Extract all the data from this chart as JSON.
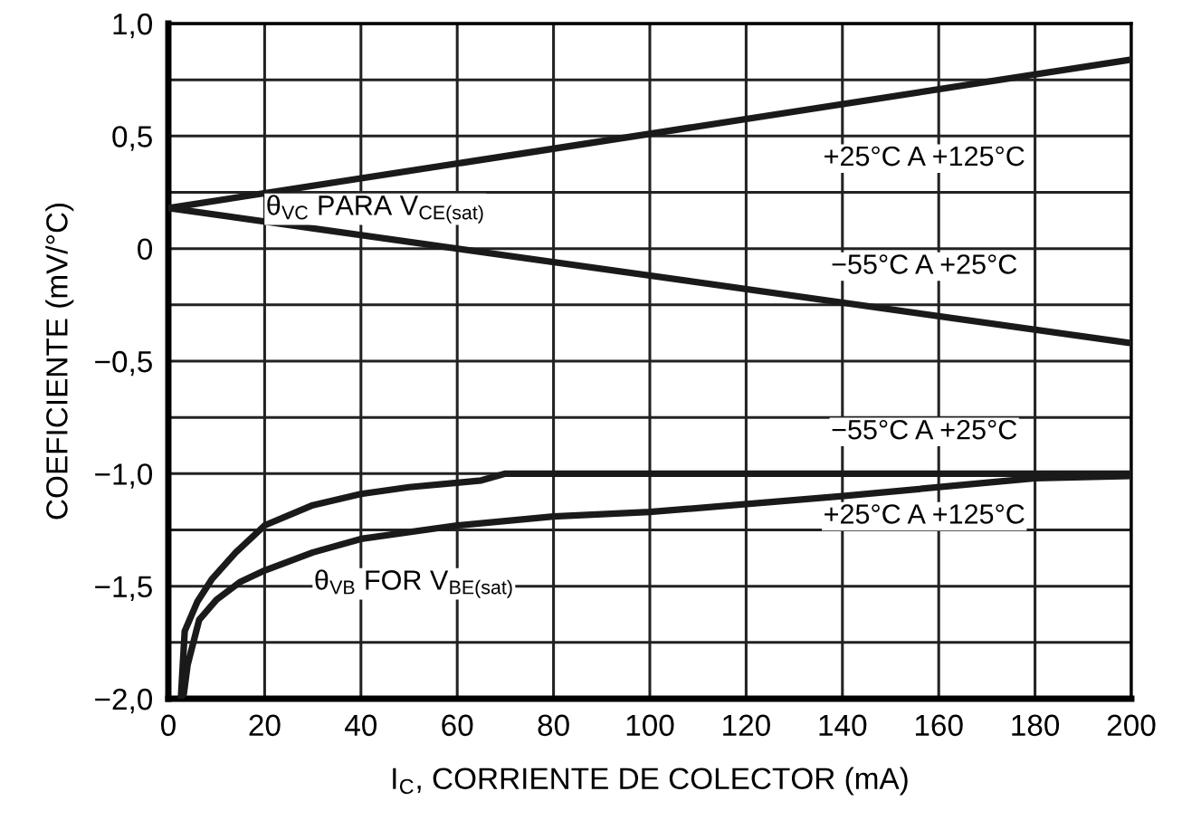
{
  "chart_data": {
    "type": "line",
    "xlabel": "I$_{C}$, CORRIENTE DE COLECTOR (mA)",
    "ylabel": "COEFICIENTE (mV/°C)",
    "xlim": [
      0,
      200
    ],
    "xticks": [
      0,
      20,
      40,
      60,
      80,
      100,
      120,
      140,
      160,
      180,
      200
    ],
    "ylim": [
      -2.0,
      1.0
    ],
    "yticks": [
      {
        "value": -2.0,
        "label": "−2,0"
      },
      {
        "value": -1.75,
        "label": null
      },
      {
        "value": -1.5,
        "label": "−1,5"
      },
      {
        "value": -1.25,
        "label": null
      },
      {
        "value": -1.0,
        "label": "−1,0"
      },
      {
        "value": -0.75,
        "label": null
      },
      {
        "value": -0.5,
        "label": "−0,5"
      },
      {
        "value": -0.25,
        "label": null
      },
      {
        "value": 0,
        "label": "0"
      },
      {
        "value": 0.25,
        "label": null
      },
      {
        "value": 0.5,
        "label": "0,5"
      },
      {
        "value": 0.75,
        "label": null
      },
      {
        "value": 1.0,
        "label": "1,0"
      }
    ],
    "grid": true,
    "marker": "none",
    "line_style": "solid",
    "series": [
      {
        "color": "#1a1a1a",
        "x": [
          0,
          200
        ],
        "values": [
          0.18,
          0.84
        ]
      },
      {
        "color": "#1a1a1a",
        "x": [
          0,
          200
        ],
        "values": [
          0.18,
          -0.42
        ]
      },
      {
        "color": "#1a1a1a",
        "x": [
          2.6,
          3.4,
          6,
          9,
          14,
          20,
          30,
          40,
          50,
          60,
          65,
          70,
          100,
          200
        ],
        "values": [
          -2.0,
          -1.7,
          -1.57,
          -1.47,
          -1.35,
          -1.23,
          -1.14,
          -1.09,
          -1.06,
          -1.04,
          -1.03,
          -1.0,
          -1.0,
          -1.0
        ]
      },
      {
        "color": "#1a1a1a",
        "x": [
          3.2,
          4,
          6.4,
          10,
          15,
          20,
          30,
          40,
          60,
          80,
          100,
          140,
          180,
          200
        ],
        "values": [
          -1.98,
          -1.85,
          -1.65,
          -1.56,
          -1.48,
          -1.43,
          -1.35,
          -1.29,
          -1.23,
          -1.19,
          -1.17,
          -1.1,
          -1.02,
          -1.01
        ]
      }
    ],
    "annotations": [
      "θ$_{VC}$ PARA V$_{CE(sat)}$",
      "+25°C A +125°C",
      "−55°C A +25°C",
      "−55°C A +25°C",
      "+25°C A +125°C",
      "θ$_{VB}$ FOR V$_{BE(sat)}$"
    ]
  }
}
